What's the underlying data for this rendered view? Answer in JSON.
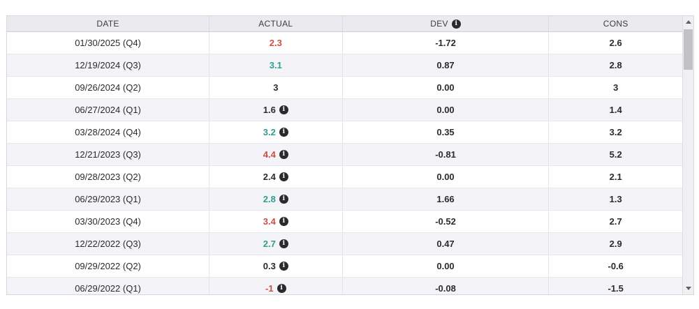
{
  "table": {
    "columns": [
      {
        "key": "date",
        "label": "DATE",
        "has_info_icon": false
      },
      {
        "key": "actual",
        "label": "ACTUAL",
        "has_info_icon": false
      },
      {
        "key": "dev",
        "label": "DEV",
        "has_info_icon": true
      },
      {
        "key": "cons",
        "label": "CONS",
        "has_info_icon": false
      }
    ],
    "rows": [
      {
        "date": "01/30/2025 (Q4)",
        "actual": "2.3",
        "actual_color": "negative",
        "actual_info_icon": false,
        "dev": "-1.72",
        "cons": "2.6"
      },
      {
        "date": "12/19/2024 (Q3)",
        "actual": "3.1",
        "actual_color": "positive",
        "actual_info_icon": false,
        "dev": "0.87",
        "cons": "2.8"
      },
      {
        "date": "09/26/2024 (Q2)",
        "actual": "3",
        "actual_color": "neutral",
        "actual_info_icon": false,
        "dev": "0.00",
        "cons": "3"
      },
      {
        "date": "06/27/2024 (Q1)",
        "actual": "1.6",
        "actual_color": "neutral",
        "actual_info_icon": true,
        "dev": "0.00",
        "cons": "1.4"
      },
      {
        "date": "03/28/2024 (Q4)",
        "actual": "3.2",
        "actual_color": "positive",
        "actual_info_icon": true,
        "dev": "0.35",
        "cons": "3.2"
      },
      {
        "date": "12/21/2023 (Q3)",
        "actual": "4.4",
        "actual_color": "negative",
        "actual_info_icon": true,
        "dev": "-0.81",
        "cons": "5.2"
      },
      {
        "date": "09/28/2023 (Q2)",
        "actual": "2.4",
        "actual_color": "neutral",
        "actual_info_icon": true,
        "dev": "0.00",
        "cons": "2.1"
      },
      {
        "date": "06/29/2023 (Q1)",
        "actual": "2.8",
        "actual_color": "positive",
        "actual_info_icon": true,
        "dev": "1.66",
        "cons": "1.3"
      },
      {
        "date": "03/30/2023 (Q4)",
        "actual": "3.4",
        "actual_color": "negative",
        "actual_info_icon": true,
        "dev": "-0.52",
        "cons": "2.7"
      },
      {
        "date": "12/22/2022 (Q3)",
        "actual": "2.7",
        "actual_color": "positive",
        "actual_info_icon": true,
        "dev": "0.47",
        "cons": "2.9"
      },
      {
        "date": "09/29/2022 (Q2)",
        "actual": "0.3",
        "actual_color": "neutral",
        "actual_info_icon": true,
        "dev": "0.00",
        "cons": "-0.6"
      },
      {
        "date": "06/29/2022 (Q1)",
        "actual": "-1",
        "actual_color": "negative",
        "actual_info_icon": true,
        "dev": "-0.08",
        "cons": "-1.5"
      }
    ]
  },
  "icons": {
    "info_glyph": "i"
  },
  "colors": {
    "negative": "#cc4f44",
    "positive": "#2f9e8f",
    "neutral": "#2b2b2b",
    "header_bg": "#ebebef",
    "alt_row_bg": "#f3f3f8"
  },
  "scrollbar": {
    "orientation": "vertical",
    "up_arrow": "▲",
    "down_arrow": "▼"
  },
  "chart_data": {
    "type": "table",
    "title": "",
    "columns": [
      "DATE",
      "ACTUAL",
      "DEV",
      "CONS"
    ],
    "rows": [
      [
        "01/30/2025 (Q4)",
        2.3,
        -1.72,
        2.6
      ],
      [
        "12/19/2024 (Q3)",
        3.1,
        0.87,
        2.8
      ],
      [
        "09/26/2024 (Q2)",
        3,
        0.0,
        3
      ],
      [
        "06/27/2024 (Q1)",
        1.6,
        0.0,
        1.4
      ],
      [
        "03/28/2024 (Q4)",
        3.2,
        0.35,
        3.2
      ],
      [
        "12/21/2023 (Q3)",
        4.4,
        -0.81,
        5.2
      ],
      [
        "09/28/2023 (Q2)",
        2.4,
        0.0,
        2.1
      ],
      [
        "06/29/2023 (Q1)",
        2.8,
        1.66,
        1.3
      ],
      [
        "03/30/2023 (Q4)",
        3.4,
        -0.52,
        2.7
      ],
      [
        "12/22/2022 (Q3)",
        2.7,
        0.47,
        2.9
      ],
      [
        "09/29/2022 (Q2)",
        0.3,
        0.0,
        -0.6
      ],
      [
        "06/29/2022 (Q1)",
        -1,
        -0.08,
        -1.5
      ]
    ]
  }
}
